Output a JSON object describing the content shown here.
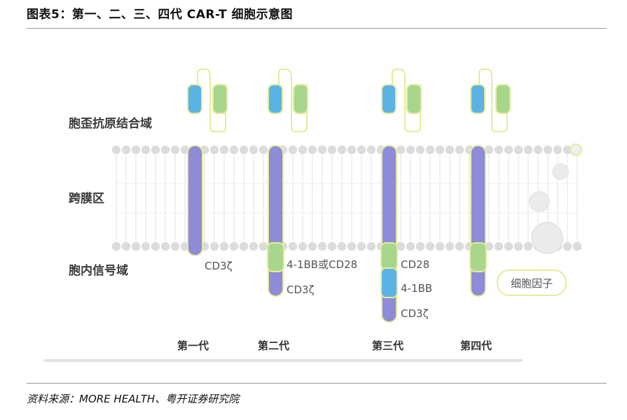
{
  "title": "图表5：第一、二、三、四代 CAR-T 细胞示意图",
  "source": "资料来源：MORE HEALTH、粤开证券研究院",
  "regions": {
    "antigen_binding": "胞歪抗原结合域",
    "transmembrane": "跨膜区",
    "intracellular": "胞内信号域"
  },
  "generations": [
    {
      "label": "第一代",
      "domains": [
        "CD3ζ"
      ]
    },
    {
      "label": "第二代",
      "domains": [
        "4-1BB或CD28",
        "CD3ζ"
      ]
    },
    {
      "label": "第三代",
      "domains": [
        "CD28",
        "4-1BB",
        "CD3ζ"
      ]
    },
    {
      "label": "第四代",
      "domains": [],
      "extra": "细胞因子"
    }
  ],
  "colors": {
    "transmembrane": "#8e8bd8",
    "vh": "#5bb3e3",
    "vl": "#a8d68c",
    "costim": "#a8d68c",
    "costim_alt": "#5bb3e3",
    "outline": "#e3ec9a",
    "membrane": "#dcdcdc",
    "cytokine": "#e6e6e6",
    "label": "#3a3a3a"
  }
}
